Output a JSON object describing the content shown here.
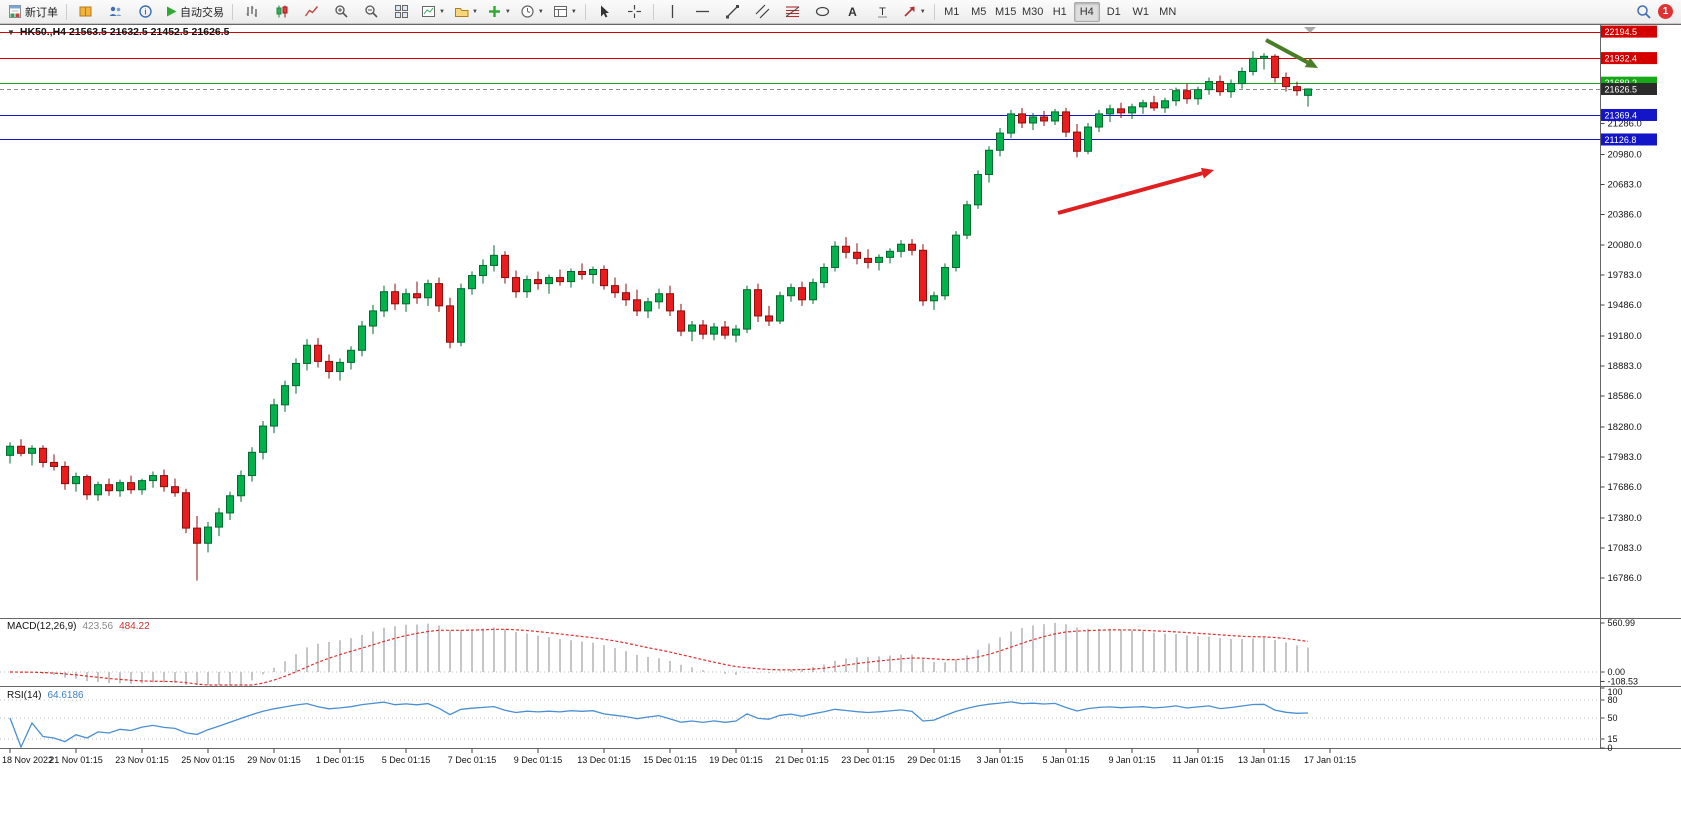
{
  "toolbar": {
    "new_order": "新订单",
    "auto_trading": "自动交易",
    "timeframes": [
      "M1",
      "M5",
      "M15",
      "M30",
      "H1",
      "H4",
      "D1",
      "W1",
      "MN"
    ],
    "active_timeframe": "H4",
    "notification_badge": "1"
  },
  "symbol_bar": {
    "text": "HK50.,H4 21563.5 21632.5 21452.5 21626.5"
  },
  "indicators": {
    "macd": {
      "label": "MACD(12,26,9)",
      "value_main": "423.56",
      "value_signal": "484.22",
      "axis": [
        "560.99",
        "0.00",
        "-108.53"
      ]
    },
    "rsi": {
      "label": "RSI(14)",
      "value": "64.6186",
      "axis": [
        "100",
        "80",
        "50",
        "15",
        "0"
      ],
      "levels": [
        80,
        50,
        15
      ]
    }
  },
  "price_axis": {
    "labels": [
      "21286.0",
      "20980.0",
      "20683.0",
      "20386.0",
      "20080.0",
      "19783.0",
      "19486.0",
      "19180.0",
      "18883.0",
      "18586.0",
      "18280.0",
      "17983.0",
      "17686.0",
      "17380.0",
      "17083.0",
      "16786.0"
    ]
  },
  "time_axis": [
    "18 Nov 2022",
    "21 Nov 01:15",
    "23 Nov 01:15",
    "25 Nov 01:15",
    "29 Nov 01:15",
    "1 Dec 01:15",
    "5 Dec 01:15",
    "7 Dec 01:15",
    "9 Dec 01:15",
    "13 Dec 01:15",
    "15 Dec 01:15",
    "19 Dec 01:15",
    "21 Dec 01:15",
    "23 Dec 01:15",
    "29 Dec 01:15",
    "3 Jan 01:15",
    "5 Jan 01:15",
    "9 Jan 01:15",
    "11 Jan 01:15",
    "13 Jan 01:15",
    "17 Jan 01:15"
  ],
  "chart_data": {
    "type": "candlestick",
    "symbol": "HK50.",
    "timeframe": "H4",
    "title": "HK50.,H4",
    "ylim": [
      16400,
      22260
    ],
    "up_color": "#00b14c",
    "down_color": "#ea1c1c",
    "hlines": [
      {
        "price": 22194.5,
        "label": "22194.5",
        "color": "#d40000",
        "style": "solid"
      },
      {
        "price": 21932.4,
        "label": "21932.4",
        "color": "#d40000",
        "style": "solid"
      },
      {
        "price": 21689.2,
        "label": "21689.2",
        "color": "#16a816",
        "style": "solid"
      },
      {
        "price": 21626.5,
        "label": "21626.5",
        "color": "#8a8a8a",
        "style": "dash",
        "tag": "#2b2b2b"
      },
      {
        "price": 21369.4,
        "label": "21369.4",
        "color": "#1414c8",
        "style": "solid"
      },
      {
        "price": 21126.8,
        "label": "21126.8",
        "color": "#1414c8",
        "style": "solid"
      }
    ],
    "annotations": [
      {
        "type": "arrow",
        "from": [
          1058,
          190
        ],
        "to": [
          1214,
          147
        ],
        "color": "#e02020",
        "width": 4
      },
      {
        "type": "arrow",
        "from": [
          1266,
          17
        ],
        "to": [
          1318,
          45
        ],
        "color": "#4a7d28",
        "width": 4
      }
    ],
    "ohlc": [
      [
        18000,
        18130,
        17920,
        18090
      ],
      [
        18090,
        18160,
        17990,
        18020
      ],
      [
        18020,
        18100,
        17900,
        18070
      ],
      [
        18070,
        18100,
        17880,
        17930
      ],
      [
        17930,
        18010,
        17850,
        17890
      ],
      [
        17890,
        17940,
        17660,
        17720
      ],
      [
        17720,
        17830,
        17640,
        17790
      ],
      [
        17790,
        17810,
        17560,
        17610
      ],
      [
        17610,
        17740,
        17550,
        17710
      ],
      [
        17710,
        17770,
        17600,
        17650
      ],
      [
        17650,
        17760,
        17590,
        17730
      ],
      [
        17730,
        17800,
        17620,
        17660
      ],
      [
        17660,
        17770,
        17610,
        17750
      ],
      [
        17750,
        17840,
        17680,
        17800
      ],
      [
        17800,
        17860,
        17640,
        17690
      ],
      [
        17690,
        17770,
        17590,
        17630
      ],
      [
        17630,
        17670,
        17230,
        17280
      ],
      [
        17280,
        17400,
        16760,
        17130
      ],
      [
        17130,
        17340,
        17040,
        17290
      ],
      [
        17290,
        17480,
        17200,
        17430
      ],
      [
        17430,
        17640,
        17360,
        17600
      ],
      [
        17600,
        17850,
        17540,
        17800
      ],
      [
        17800,
        18080,
        17740,
        18030
      ],
      [
        18030,
        18340,
        17960,
        18290
      ],
      [
        18290,
        18560,
        18220,
        18500
      ],
      [
        18500,
        18740,
        18430,
        18690
      ],
      [
        18690,
        18960,
        18610,
        18910
      ],
      [
        18910,
        19150,
        18840,
        19090
      ],
      [
        19090,
        19160,
        18870,
        18930
      ],
      [
        18930,
        19000,
        18760,
        18830
      ],
      [
        18830,
        18960,
        18740,
        18920
      ],
      [
        18920,
        19080,
        18850,
        19040
      ],
      [
        19040,
        19330,
        18980,
        19280
      ],
      [
        19280,
        19490,
        19200,
        19430
      ],
      [
        19430,
        19680,
        19370,
        19620
      ],
      [
        19620,
        19700,
        19440,
        19500
      ],
      [
        19500,
        19650,
        19420,
        19600
      ],
      [
        19600,
        19720,
        19500,
        19560
      ],
      [
        19560,
        19740,
        19480,
        19700
      ],
      [
        19700,
        19760,
        19420,
        19480
      ],
      [
        19480,
        19560,
        19060,
        19120
      ],
      [
        19120,
        19700,
        19080,
        19650
      ],
      [
        19650,
        19820,
        19590,
        19780
      ],
      [
        19780,
        19940,
        19700,
        19880
      ],
      [
        19880,
        20080,
        19820,
        19980
      ],
      [
        19980,
        20020,
        19700,
        19760
      ],
      [
        19760,
        19830,
        19560,
        19620
      ],
      [
        19620,
        19780,
        19560,
        19740
      ],
      [
        19740,
        19820,
        19640,
        19700
      ],
      [
        19700,
        19790,
        19600,
        19760
      ],
      [
        19760,
        19840,
        19680,
        19720
      ],
      [
        19720,
        19850,
        19660,
        19820
      ],
      [
        19820,
        19900,
        19740,
        19790
      ],
      [
        19790,
        19870,
        19700,
        19840
      ],
      [
        19840,
        19880,
        19640,
        19680
      ],
      [
        19680,
        19760,
        19560,
        19610
      ],
      [
        19610,
        19700,
        19480,
        19540
      ],
      [
        19540,
        19640,
        19380,
        19430
      ],
      [
        19430,
        19560,
        19360,
        19520
      ],
      [
        19520,
        19650,
        19450,
        19600
      ],
      [
        19600,
        19680,
        19380,
        19430
      ],
      [
        19430,
        19500,
        19180,
        19230
      ],
      [
        19230,
        19330,
        19130,
        19290
      ],
      [
        19290,
        19340,
        19150,
        19200
      ],
      [
        19200,
        19310,
        19140,
        19270
      ],
      [
        19270,
        19330,
        19150,
        19190
      ],
      [
        19190,
        19290,
        19120,
        19250
      ],
      [
        19250,
        19680,
        19210,
        19640
      ],
      [
        19640,
        19700,
        19320,
        19380
      ],
      [
        19380,
        19480,
        19280,
        19330
      ],
      [
        19330,
        19620,
        19300,
        19580
      ],
      [
        19580,
        19700,
        19520,
        19660
      ],
      [
        19660,
        19720,
        19480,
        19540
      ],
      [
        19540,
        19750,
        19500,
        19710
      ],
      [
        19710,
        19900,
        19660,
        19860
      ],
      [
        19860,
        20120,
        19820,
        20070
      ],
      [
        20070,
        20160,
        19950,
        20010
      ],
      [
        20010,
        20100,
        19890,
        19950
      ],
      [
        19950,
        20040,
        19850,
        19910
      ],
      [
        19910,
        19990,
        19830,
        19960
      ],
      [
        19960,
        20050,
        19900,
        20020
      ],
      [
        20020,
        20130,
        19960,
        20090
      ],
      [
        20090,
        20140,
        19980,
        20030
      ],
      [
        20030,
        20090,
        19480,
        19530
      ],
      [
        19530,
        19620,
        19440,
        19580
      ],
      [
        19580,
        19900,
        19540,
        19860
      ],
      [
        19860,
        20220,
        19820,
        20180
      ],
      [
        20180,
        20520,
        20140,
        20480
      ],
      [
        20480,
        20820,
        20440,
        20780
      ],
      [
        20780,
        21060,
        20700,
        21020
      ],
      [
        21020,
        21240,
        20960,
        21190
      ],
      [
        21190,
        21420,
        21140,
        21380
      ],
      [
        21380,
        21440,
        21240,
        21290
      ],
      [
        21290,
        21390,
        21220,
        21350
      ],
      [
        21350,
        21410,
        21260,
        21310
      ],
      [
        21310,
        21430,
        21270,
        21400
      ],
      [
        21400,
        21440,
        21150,
        21200
      ],
      [
        21200,
        21280,
        20950,
        21010
      ],
      [
        21010,
        21290,
        20980,
        21250
      ],
      [
        21250,
        21420,
        21200,
        21380
      ],
      [
        21380,
        21470,
        21300,
        21430
      ],
      [
        21430,
        21490,
        21340,
        21390
      ],
      [
        21390,
        21480,
        21330,
        21450
      ],
      [
        21450,
        21520,
        21380,
        21490
      ],
      [
        21490,
        21560,
        21410,
        21440
      ],
      [
        21440,
        21540,
        21390,
        21510
      ],
      [
        21510,
        21640,
        21460,
        21610
      ],
      [
        21610,
        21680,
        21480,
        21530
      ],
      [
        21530,
        21650,
        21470,
        21620
      ],
      [
        21620,
        21740,
        21570,
        21700
      ],
      [
        21700,
        21760,
        21560,
        21600
      ],
      [
        21600,
        21720,
        21540,
        21680
      ],
      [
        21680,
        21840,
        21630,
        21800
      ],
      [
        21800,
        22000,
        21760,
        21930
      ],
      [
        21930,
        21980,
        21820,
        21950
      ],
      [
        21950,
        21970,
        21690,
        21740
      ],
      [
        21740,
        21790,
        21600,
        21650
      ],
      [
        21650,
        21700,
        21560,
        21610
      ],
      [
        21563.5,
        21632.5,
        21452.5,
        21626.5
      ]
    ]
  }
}
